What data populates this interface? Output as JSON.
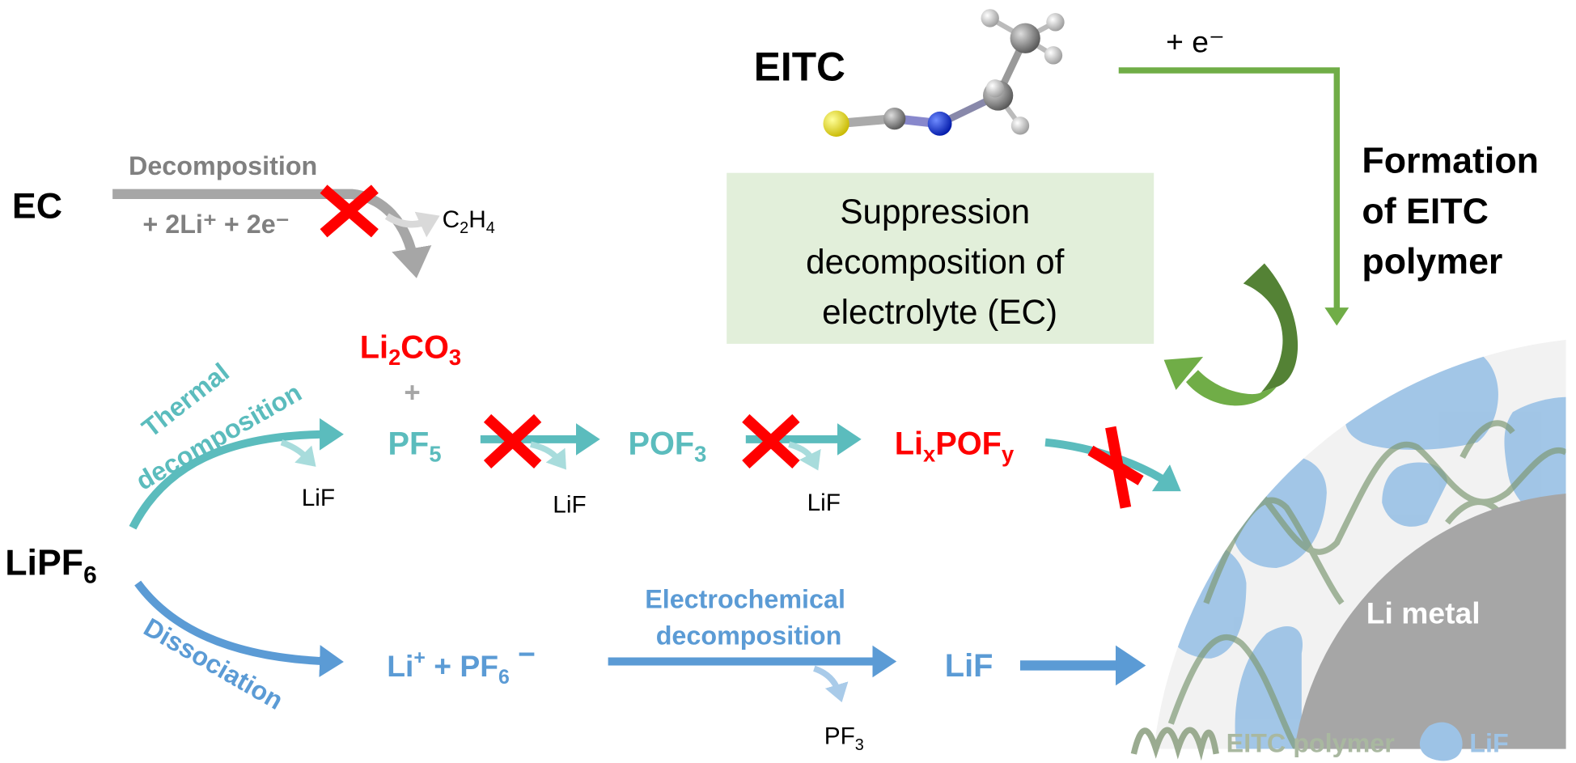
{
  "colors": {
    "gray_arrow": "#a6a6a6",
    "gray_text": "#808080",
    "red": "#ff0000",
    "teal": "#5bbcbd",
    "blue": "#5b9bd5",
    "green": "#70ad47",
    "dark_green": "#548235",
    "box_fill": "#e2efda",
    "lif_blob": "#9dc3e6",
    "polymer": "#9aab90",
    "li_metal": "#a6a6a6"
  },
  "eitc": {
    "label": "EITC",
    "electron": "+ e⁻"
  },
  "formation": {
    "lines": [
      "Formation",
      "of EITC",
      "polymer"
    ]
  },
  "suppression_box": {
    "lines": [
      "Suppression",
      "decomposition of",
      "electrolyte (EC)"
    ]
  },
  "ec_path": {
    "reactant": "EC",
    "process": "Decomposition",
    "reagents": "+ 2Li⁺ + 2e⁻",
    "byproduct": {
      "main": "C",
      "sub1": "2",
      "mid": "H",
      "sub2": "4"
    },
    "product": {
      "a": "Li",
      "sub1": "2",
      "b": "CO",
      "sub2": "3"
    },
    "plus": "+"
  },
  "thermal_path": {
    "process_line1": "Thermal",
    "process_line2": "decomposition",
    "pf5": {
      "main": "PF",
      "sub": "5"
    },
    "pof3": {
      "main": "POF",
      "sub": "3"
    },
    "lixpofy": {
      "a": "Li",
      "sub1": "x",
      "b": "POF",
      "sub2": "y"
    },
    "lif_byproducts": [
      "LiF",
      "LiF",
      "LiF"
    ]
  },
  "lipf6": {
    "main": "LiPF",
    "sub": "6"
  },
  "dissociation_path": {
    "process": "Dissociation",
    "ions": {
      "a": "Li",
      "sup1": "+",
      "b": " + PF",
      "sub": "6",
      "sup2": " −"
    },
    "electrochem_line1": "Electrochemical",
    "electrochem_line2": "decomposition",
    "byproduct": {
      "main": "PF",
      "sub": "3"
    },
    "product": "LiF"
  },
  "cell": {
    "li_metal": "Li metal"
  },
  "legend": {
    "polymer": "EITC polymer",
    "lif": "LiF"
  }
}
